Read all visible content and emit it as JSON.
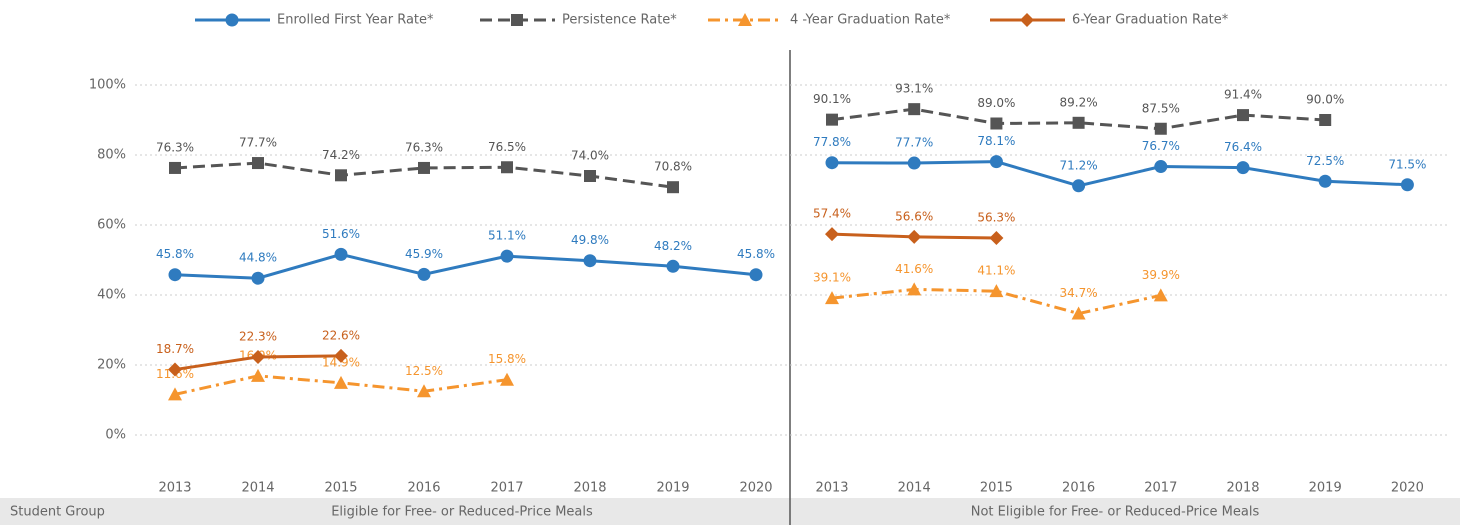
{
  "chart_data": {
    "type": "line",
    "ylim": [
      0,
      100
    ],
    "yticks": [
      {
        "value": 0,
        "label": "0%"
      },
      {
        "value": 20,
        "label": "20%"
      },
      {
        "value": 40,
        "label": "40%"
      },
      {
        "value": 60,
        "label": "60%"
      },
      {
        "value": 80,
        "label": "80%"
      },
      {
        "value": 100,
        "label": "100%"
      }
    ],
    "grid": true,
    "group_label": "Student Group",
    "series": [
      {
        "name": "Enrolled First Year Rate*",
        "color": "#2f7bbf",
        "line_style": "solid",
        "marker": "circle"
      },
      {
        "name": "Persistence Rate*",
        "color": "#555555",
        "line_style": "dashed",
        "marker": "square"
      },
      {
        "name": "4 -Year Graduation Rate*",
        "color": "#f5952e",
        "line_style": "dashdot",
        "marker": "triangle"
      },
      {
        "name": "6-Year Graduation Rate*",
        "color": "#c8601c",
        "line_style": "solid",
        "marker": "diamond"
      }
    ],
    "panels": [
      {
        "label": "Eligible for Free- or Reduced-Price Meals",
        "categories": [
          "2013",
          "2014",
          "2015",
          "2016",
          "2017",
          "2018",
          "2019",
          "2020"
        ],
        "series": [
          {
            "values": [
              45.8,
              44.8,
              51.6,
              45.9,
              51.1,
              49.8,
              48.2,
              45.8
            ],
            "value_labels": [
              "45.8%",
              "44.8%",
              "51.6%",
              "45.9%",
              "51.1%",
              "49.8%",
              "48.2%",
              "45.8%"
            ]
          },
          {
            "values": [
              76.3,
              77.7,
              74.2,
              76.3,
              76.5,
              74.0,
              70.8,
              null
            ],
            "value_labels": [
              "76.3%",
              "77.7%",
              "74.2%",
              "76.3%",
              "76.5%",
              "74.0%",
              "70.8%",
              null
            ]
          },
          {
            "values": [
              11.6,
              16.9,
              14.9,
              12.5,
              15.8,
              null,
              null,
              null
            ],
            "value_labels": [
              "11.6%",
              "16.9%",
              "14.9%",
              "12.5%",
              "15.8%",
              null,
              null,
              null
            ]
          },
          {
            "values": [
              18.7,
              22.3,
              22.6,
              null,
              null,
              null,
              null,
              null
            ],
            "value_labels": [
              "18.7%",
              "22.3%",
              "22.6%",
              null,
              null,
              null,
              null,
              null
            ]
          }
        ]
      },
      {
        "label": "Not Eligible for Free- or Reduced-Price Meals",
        "categories": [
          "2013",
          "2014",
          "2015",
          "2016",
          "2017",
          "2018",
          "2019",
          "2020"
        ],
        "series": [
          {
            "values": [
              77.8,
              77.7,
              78.1,
              71.2,
              76.7,
              76.4,
              72.5,
              71.5
            ],
            "value_labels": [
              "77.8%",
              "77.7%",
              "78.1%",
              "71.2%",
              "76.7%",
              "76.4%",
              "72.5%",
              "71.5%"
            ]
          },
          {
            "values": [
              90.1,
              93.1,
              89.0,
              89.2,
              87.5,
              91.4,
              90.0,
              null
            ],
            "value_labels": [
              "90.1%",
              "93.1%",
              "89.0%",
              "89.2%",
              "87.5%",
              "91.4%",
              "90.0%",
              null
            ]
          },
          {
            "values": [
              39.1,
              41.6,
              41.1,
              34.7,
              39.9,
              null,
              null,
              null
            ],
            "value_labels": [
              "39.1%",
              "41.6%",
              "41.1%",
              "34.7%",
              "39.9%",
              null,
              null,
              null
            ]
          },
          {
            "values": [
              57.4,
              56.6,
              56.3,
              null,
              null,
              null,
              null,
              null
            ],
            "value_labels": [
              "57.4%",
              "56.6%",
              "56.3%",
              null,
              null,
              null,
              null,
              null
            ]
          }
        ]
      }
    ]
  }
}
